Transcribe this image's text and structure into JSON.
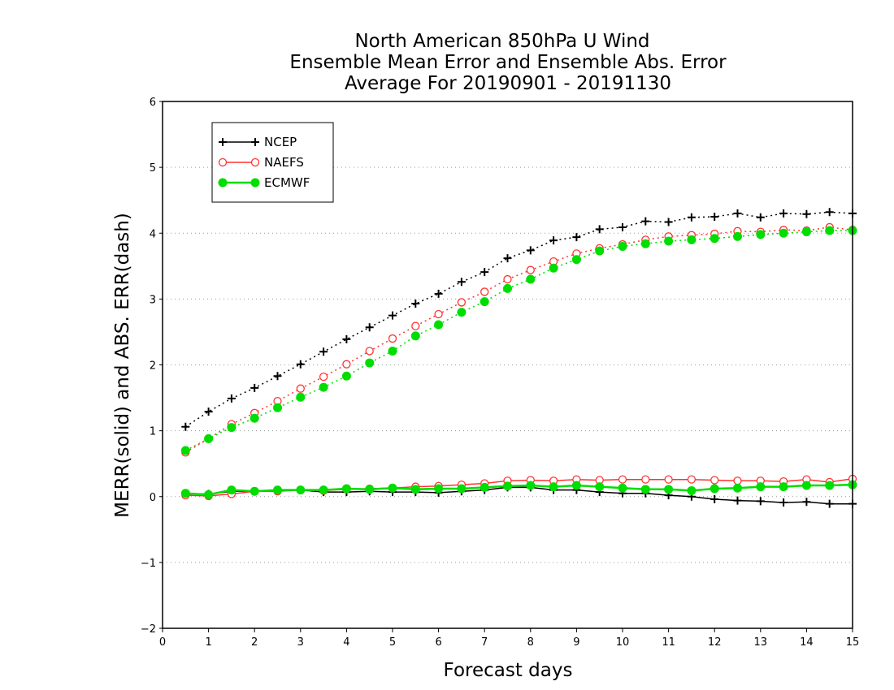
{
  "chart_data": {
    "type": "line",
    "title": [
      "North American 850hPa U Wind",
      "Ensemble Mean Error and Ensemble Abs. Error",
      "Average For 20190901 - 20191130"
    ],
    "xlabel": "Forecast days",
    "ylabel": "MERR(solid) and ABS. ERR(dash)",
    "xlim": [
      0,
      15
    ],
    "ylim": [
      -2,
      6
    ],
    "xticks": [
      0,
      1,
      2,
      3,
      4,
      5,
      6,
      7,
      8,
      9,
      10,
      11,
      12,
      13,
      14,
      15
    ],
    "yticks": [
      -2,
      -1,
      0,
      1,
      2,
      3,
      4,
      5,
      6
    ],
    "grid": "horizontal dotted",
    "legend_position": "top-left",
    "x": [
      0.5,
      1,
      1.5,
      2,
      2.5,
      3,
      3.5,
      4,
      4.5,
      5,
      5.5,
      6,
      6.5,
      7,
      7.5,
      8,
      8.5,
      9,
      9.5,
      10,
      10.5,
      11,
      11.5,
      12,
      12.5,
      13,
      13.5,
      14,
      14.5,
      15
    ],
    "series": [
      {
        "name": "NCEP",
        "color": "#000000",
        "marker": "plus",
        "abs_err": [
          1.06,
          1.29,
          1.49,
          1.65,
          1.83,
          2.01,
          2.2,
          2.39,
          2.57,
          2.75,
          2.93,
          3.08,
          3.26,
          3.41,
          3.62,
          3.74,
          3.89,
          3.94,
          4.06,
          4.09,
          4.18,
          4.17,
          4.24,
          4.25,
          4.3,
          4.24,
          4.3,
          4.29,
          4.32,
          4.3
        ],
        "mean_err": [
          0.04,
          0.04,
          0.08,
          0.08,
          0.09,
          0.1,
          0.07,
          0.07,
          0.08,
          0.07,
          0.07,
          0.06,
          0.08,
          0.1,
          0.14,
          0.14,
          0.1,
          0.1,
          0.07,
          0.05,
          0.05,
          0.02,
          0.0,
          -0.04,
          -0.06,
          -0.07,
          -0.09,
          -0.08,
          -0.11,
          -0.11
        ]
      },
      {
        "name": "NAEFS",
        "color": "#ff3333",
        "marker": "open-circle",
        "abs_err": [
          0.67,
          0.88,
          1.1,
          1.27,
          1.45,
          1.64,
          1.82,
          2.01,
          2.21,
          2.4,
          2.59,
          2.77,
          2.95,
          3.11,
          3.3,
          3.44,
          3.57,
          3.69,
          3.77,
          3.83,
          3.9,
          3.95,
          3.97,
          3.99,
          4.03,
          4.02,
          4.05,
          4.04,
          4.09,
          4.05
        ],
        "mean_err": [
          0.02,
          0.01,
          0.04,
          0.08,
          0.08,
          0.1,
          0.09,
          0.11,
          0.12,
          0.13,
          0.15,
          0.16,
          0.18,
          0.2,
          0.24,
          0.25,
          0.24,
          0.26,
          0.25,
          0.26,
          0.26,
          0.26,
          0.26,
          0.25,
          0.24,
          0.24,
          0.23,
          0.26,
          0.22,
          0.27
        ]
      },
      {
        "name": "ECMWF",
        "color": "#00dd00",
        "marker": "filled-circle",
        "abs_err": [
          0.7,
          0.88,
          1.05,
          1.19,
          1.35,
          1.51,
          1.66,
          1.83,
          2.03,
          2.21,
          2.44,
          2.61,
          2.8,
          2.96,
          3.16,
          3.3,
          3.47,
          3.6,
          3.73,
          3.8,
          3.84,
          3.88,
          3.9,
          3.92,
          3.95,
          3.98,
          4.0,
          4.02,
          4.04,
          4.04
        ],
        "mean_err": [
          0.05,
          0.03,
          0.1,
          0.08,
          0.1,
          0.1,
          0.1,
          0.12,
          0.11,
          0.13,
          0.11,
          0.12,
          0.12,
          0.14,
          0.16,
          0.17,
          0.15,
          0.17,
          0.15,
          0.13,
          0.11,
          0.11,
          0.09,
          0.12,
          0.13,
          0.15,
          0.15,
          0.17,
          0.17,
          0.18
        ]
      }
    ]
  }
}
